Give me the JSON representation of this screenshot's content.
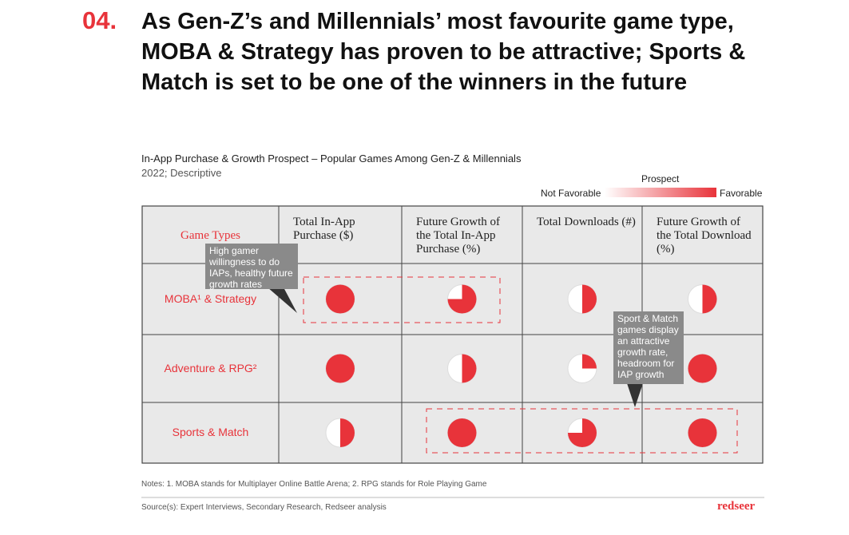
{
  "header": {
    "number": "04.",
    "title": "As Gen-Z’s and Millennials’ most favourite game type, MOBA & Strategy has proven to be attractive; Sports & Match is set to be one of the winners in the future"
  },
  "chart": {
    "title": "In-App Purchase & Growth Prospect – Popular Games Among Gen-Z & Millennials",
    "subtitle": "2022; Descriptive"
  },
  "legend": {
    "title": "Prospect",
    "low": "Not Favorable",
    "high": "Favorable"
  },
  "table": {
    "columns": [
      "Game Types",
      "Total In-App Purchase ($)",
      "Future Growth of the Total In-App Purchase (%)",
      "Total Downloads (#)",
      "Future Growth of the Total Download (%)"
    ],
    "rows": [
      {
        "label": "MOBA¹ & Strategy",
        "values": [
          1,
          0.75,
          0.5,
          0.5
        ]
      },
      {
        "label": "Adventure & RPG²",
        "values": [
          1,
          0.5,
          0.25,
          1
        ]
      },
      {
        "label": "Sports & Match",
        "values": [
          0.5,
          1,
          0.75,
          1
        ]
      }
    ]
  },
  "callouts": [
    "High gamer willingness to do IAPs, healthy future growth rates",
    "Sport & Match games display an attractive growth rate, headroom for IAP growth"
  ],
  "notes": "Notes: 1. MOBA stands for Multiplayer Online Battle Arena; 2. RPG stands for Role Playing Game",
  "source": "Source(s): Expert Interviews, Secondary Research, Redseer analysis",
  "logo": "redseer"
}
